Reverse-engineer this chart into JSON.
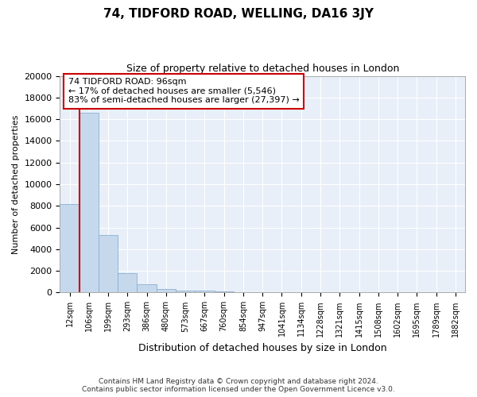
{
  "title": "74, TIDFORD ROAD, WELLING, DA16 3JY",
  "subtitle": "Size of property relative to detached houses in London",
  "xlabel": "Distribution of detached houses by size in London",
  "ylabel": "Number of detached properties",
  "bar_color": "#c6d9ec",
  "bar_edge_color": "#8ab0d0",
  "background_color": "#e8eff8",
  "grid_color": "#ffffff",
  "annotation_box_color": "#cc0000",
  "property_line_color": "#cc0000",
  "annotation_line1": "74 TIDFORD ROAD: 96sqm",
  "annotation_line2": "← 17% of detached houses are smaller (5,546)",
  "annotation_line3": "83% of semi-detached houses are larger (27,397) →",
  "footer_line1": "Contains HM Land Registry data © Crown copyright and database right 2024.",
  "footer_line2": "Contains public sector information licensed under the Open Government Licence v3.0.",
  "bin_labels": [
    "12sqm",
    "106sqm",
    "199sqm",
    "293sqm",
    "386sqm",
    "480sqm",
    "573sqm",
    "667sqm",
    "760sqm",
    "854sqm",
    "947sqm",
    "1041sqm",
    "1134sqm",
    "1228sqm",
    "1321sqm",
    "1415sqm",
    "1508sqm",
    "1602sqm",
    "1695sqm",
    "1789sqm",
    "1882sqm"
  ],
  "bar_heights": [
    8200,
    16600,
    5300,
    1800,
    750,
    300,
    200,
    150,
    100,
    0,
    0,
    0,
    0,
    0,
    0,
    0,
    0,
    0,
    0,
    0,
    0
  ],
  "property_line_x": 0.5,
  "ylim": [
    0,
    20000
  ],
  "yticks": [
    0,
    2000,
    4000,
    6000,
    8000,
    10000,
    12000,
    14000,
    16000,
    18000,
    20000
  ]
}
